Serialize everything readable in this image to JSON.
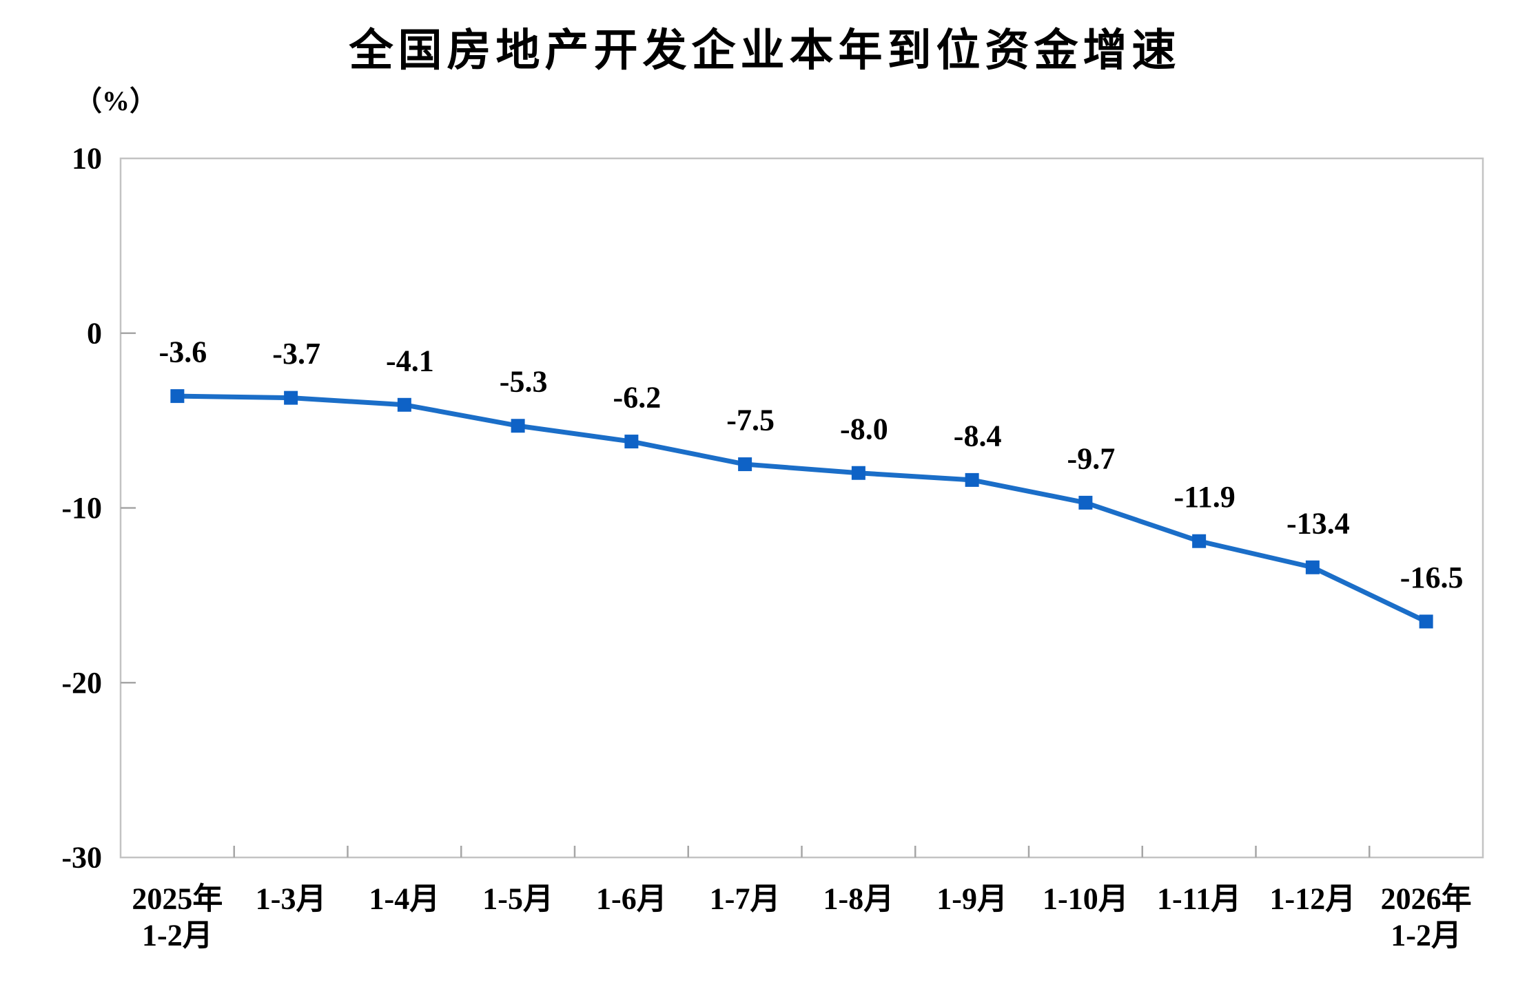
{
  "chart_data": {
    "type": "line",
    "title": "全国房地产开发企业本年到位资金增速",
    "unit_label": "（%）",
    "categories": [
      [
        "2025年",
        "1-2月"
      ],
      [
        "1-3月"
      ],
      [
        "1-4月"
      ],
      [
        "1-5月"
      ],
      [
        "1-6月"
      ],
      [
        "1-7月"
      ],
      [
        "1-8月"
      ],
      [
        "1-9月"
      ],
      [
        "1-10月"
      ],
      [
        "1-11月"
      ],
      [
        "1-12月"
      ],
      [
        "2026年",
        "1-2月"
      ]
    ],
    "values": [
      -3.6,
      -3.7,
      -4.1,
      -5.3,
      -6.2,
      -7.5,
      -8.0,
      -8.4,
      -9.7,
      -11.9,
      -13.4,
      -16.5
    ],
    "value_labels": [
      "-3.6",
      "-3.7",
      "-4.1",
      "-5.3",
      "-6.2",
      "-7.5",
      "-8.0",
      "-8.4",
      "-9.7",
      "-11.9",
      "-13.4",
      "-16.5"
    ],
    "ylim": [
      -30,
      10
    ],
    "yticks": [
      10,
      0,
      -10,
      -20,
      -30
    ],
    "grid": false,
    "legend": "none",
    "marker_shape": "square",
    "data_labels_visible": true,
    "colors": {
      "line": "#1B6EC8",
      "marker": "#0E62C6",
      "frame": "#C3C3C3",
      "tick": "#A6A6A6",
      "text": "#000000",
      "background": "#FFFFFF"
    }
  }
}
